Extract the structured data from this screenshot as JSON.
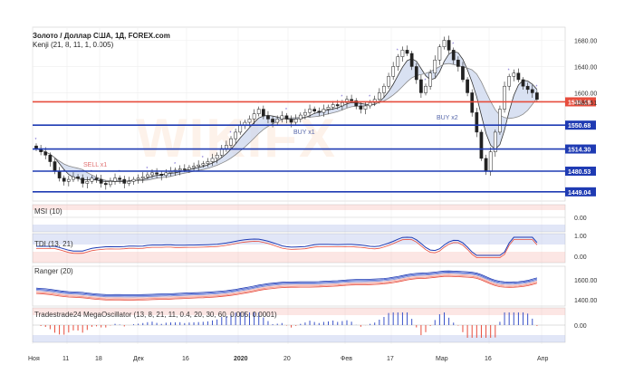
{
  "header": {
    "title": "Золото / Доллар США, 1Д, FOREX.com",
    "indicator": "Kenji (21, 8, 11, 1, 0.005)"
  },
  "watermark": "WIKIFX",
  "price_axis": {
    "ticks": [
      "1680.00",
      "1640.00",
      "1600.00",
      "1585.51"
    ],
    "levels": [
      {
        "label": "1586.18",
        "value": 1586.18,
        "color": "#e74c3c"
      },
      {
        "label": "1550.68",
        "value": 1550.68,
        "color": "#1f3bb3"
      },
      {
        "label": "1514.30",
        "value": 1514.3,
        "color": "#1f3bb3"
      },
      {
        "label": "1480.53",
        "value": 1480.53,
        "color": "#1f3bb3"
      },
      {
        "label": "1449.04",
        "value": 1449.04,
        "color": "#1f3bb3"
      }
    ]
  },
  "annotations": {
    "buy1": "BUY x1",
    "buy2": "BUY x2",
    "sell1": "SELL x1"
  },
  "panels": {
    "rsi": {
      "title": "MSI (10)",
      "axis": [
        "0.00"
      ]
    },
    "tdi": {
      "title": "TDI (13, 21)",
      "axis": [
        "1.00",
        "0.00"
      ]
    },
    "ranger": {
      "title": "Ranger (20)",
      "axis": [
        "1600.00",
        "1400.00"
      ]
    },
    "mega": {
      "title": "Tradestrade24 MegaOscillator (13, 8, 21, 11, 0.4, 20, 30, 60, 0.005, 0.0001)",
      "axis": [
        "0.00"
      ]
    }
  },
  "time_axis": [
    "Ноя",
    "11",
    "18",
    "Дек",
    "16",
    "2020",
    "20",
    "Фев",
    "17",
    "Мар",
    "16",
    "Апр"
  ],
  "colors": {
    "bull": "#ffffff",
    "bear": "#222222",
    "cloud": "#c9d4ec",
    "ma": "#333333",
    "red_line": "#e74c3c",
    "blue_line": "#1f3bb3"
  }
}
